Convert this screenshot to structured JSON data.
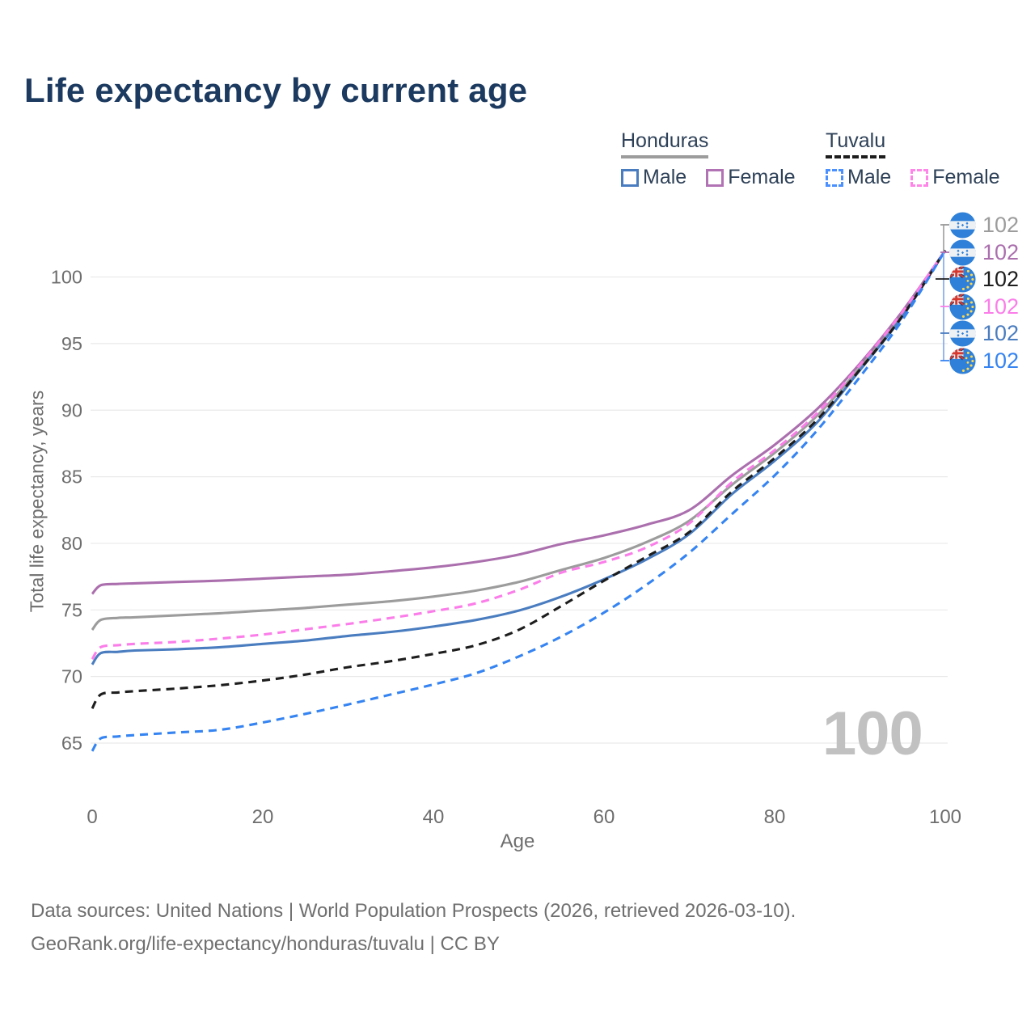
{
  "title": "Life expectancy by current age",
  "legend": {
    "honduras": {
      "label": "Honduras",
      "male_label": "Male",
      "female_label": "Female"
    },
    "tuvalu": {
      "label": "Tuvalu",
      "male_label": "Male",
      "female_label": "Female"
    }
  },
  "watermark_age": "100",
  "endpoints": [
    {
      "flag": "honduras",
      "series": "Honduras both sexes",
      "value": "102",
      "color": "#9c9c9c"
    },
    {
      "flag": "honduras",
      "series": "Honduras female",
      "value": "102",
      "color": "#ab6fae"
    },
    {
      "flag": "tuvalu",
      "series": "Tuvalu both sexes",
      "value": "102",
      "color": "#1d1d1d"
    },
    {
      "flag": "tuvalu",
      "series": "Tuvalu female",
      "value": "102",
      "color": "#fb7de9"
    },
    {
      "flag": "honduras",
      "series": "Honduras male",
      "value": "102",
      "color": "#4a7dc0"
    },
    {
      "flag": "tuvalu",
      "series": "Tuvalu male",
      "value": "102",
      "color": "#3584f2"
    }
  ],
  "footer": {
    "line1": "Data sources: United Nations | World Population Prospects (2026, retrieved 2026-03-10).",
    "line2": "GeoRank.org/life-expectancy/honduras/tuvalu | CC BY"
  },
  "chart_data": {
    "type": "line",
    "title": "Life expectancy by current age",
    "xlabel": "Age",
    "ylabel": "Total life expectancy, years",
    "xlim": [
      0,
      100
    ],
    "ylim": [
      63,
      103.5
    ],
    "x_ticks": [
      0,
      20,
      40,
      60,
      80,
      100
    ],
    "y_ticks": [
      65,
      70,
      75,
      80,
      85,
      90,
      95,
      100
    ],
    "grid": "horizontal",
    "legend_position": "top-right",
    "ages": [
      0,
      1,
      3,
      5,
      10,
      15,
      20,
      25,
      30,
      35,
      40,
      45,
      50,
      55,
      60,
      65,
      70,
      75,
      80,
      85,
      90,
      95,
      100
    ],
    "series": [
      {
        "name": "Honduras — both sexes",
        "country": "Honduras",
        "sex": "both",
        "style": "solid",
        "color": "#9c9c9c",
        "values": [
          73.5,
          74.25,
          74.4,
          74.45,
          74.6,
          74.75,
          74.95,
          75.15,
          75.4,
          75.65,
          76.0,
          76.45,
          77.1,
          78.0,
          78.9,
          80.1,
          81.7,
          84.4,
          86.8,
          89.6,
          93.2,
          97.3,
          102
        ]
      },
      {
        "name": "Honduras — female",
        "country": "Honduras",
        "sex": "female",
        "style": "solid",
        "color": "#ab6fae",
        "values": [
          76.2,
          76.85,
          76.95,
          77.0,
          77.1,
          77.2,
          77.35,
          77.5,
          77.65,
          77.9,
          78.2,
          78.6,
          79.15,
          79.95,
          80.6,
          81.4,
          82.5,
          85.1,
          87.4,
          90.1,
          93.5,
          97.45,
          102
        ]
      },
      {
        "name": "Honduras — male",
        "country": "Honduras",
        "sex": "male",
        "style": "solid",
        "color": "#4a7dc0",
        "values": [
          70.9,
          71.75,
          71.85,
          71.95,
          72.05,
          72.2,
          72.45,
          72.7,
          73.05,
          73.35,
          73.75,
          74.25,
          74.95,
          76.0,
          77.3,
          78.8,
          80.7,
          83.7,
          86.2,
          89.1,
          93.0,
          97.05,
          102
        ]
      },
      {
        "name": "Tuvalu — both sexes",
        "country": "Tuvalu",
        "sex": "both",
        "style": "dashed",
        "color": "#1d1d1d",
        "values": [
          67.6,
          68.65,
          68.8,
          68.9,
          69.1,
          69.35,
          69.7,
          70.15,
          70.7,
          71.15,
          71.7,
          72.35,
          73.5,
          75.3,
          77.2,
          79.0,
          80.85,
          83.9,
          86.4,
          89.3,
          93.05,
          97.1,
          102
        ]
      },
      {
        "name": "Tuvalu — female",
        "country": "Tuvalu",
        "sex": "female",
        "style": "dashed",
        "color": "#fb7de9",
        "values": [
          71.3,
          72.2,
          72.35,
          72.45,
          72.6,
          72.85,
          73.15,
          73.55,
          73.95,
          74.4,
          74.9,
          75.5,
          76.5,
          77.8,
          78.6,
          79.7,
          81.5,
          84.6,
          87.0,
          89.8,
          93.4,
          97.4,
          102
        ]
      },
      {
        "name": "Tuvalu — male",
        "country": "Tuvalu",
        "sex": "male",
        "style": "dashed",
        "color": "#3584f2",
        "values": [
          64.4,
          65.35,
          65.5,
          65.6,
          65.8,
          66.0,
          66.55,
          67.2,
          67.9,
          68.65,
          69.4,
          70.25,
          71.5,
          73.0,
          74.8,
          76.9,
          79.3,
          82.2,
          85.1,
          88.5,
          92.5,
          96.8,
          102
        ]
      }
    ]
  },
  "colors": {
    "title": "#1c3a5f",
    "axis_text": "#6e6e6e",
    "gridline": "#e9e9e9",
    "watermark": "#c1c1c1",
    "legend_text": "#2e4158"
  }
}
